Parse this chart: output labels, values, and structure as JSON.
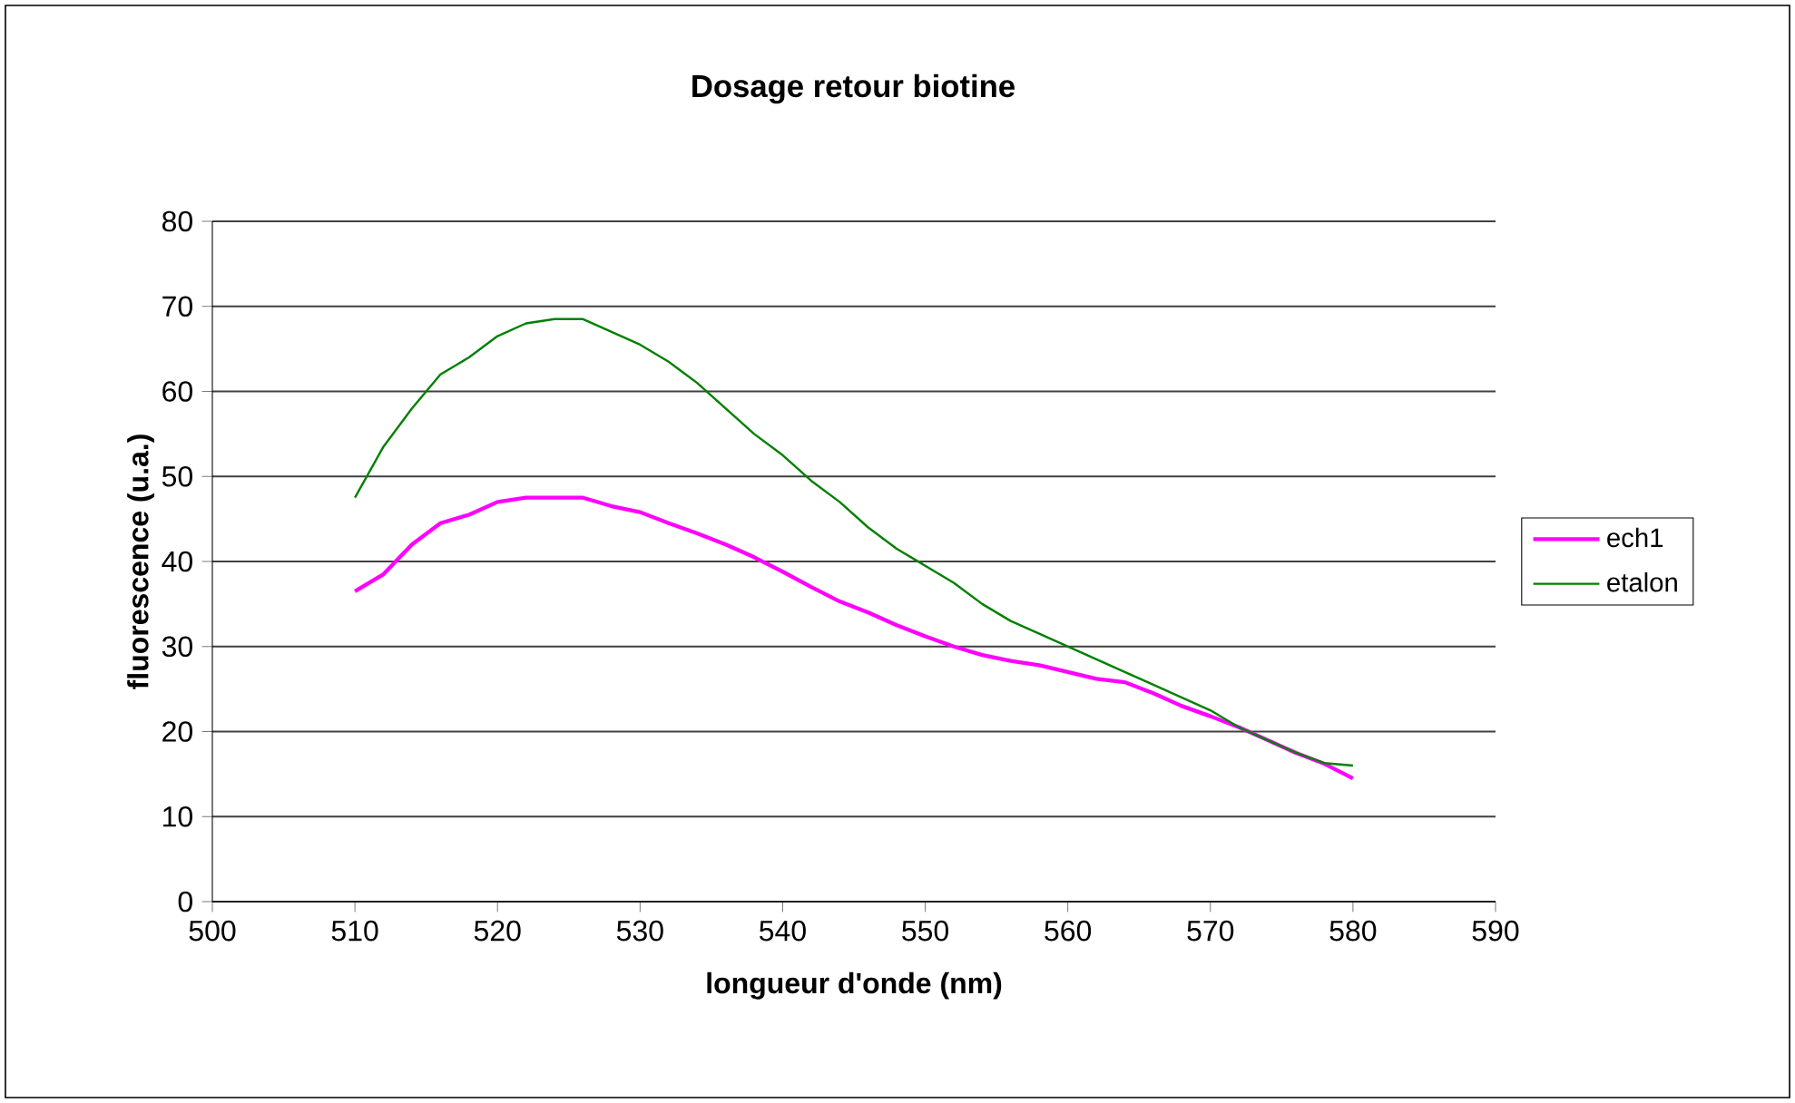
{
  "chart_data": {
    "type": "line",
    "title": "Dosage retour biotine",
    "xlabel": "longueur d'onde (nm)",
    "ylabel": "fluorescence (u.a.)",
    "x": [
      510,
      512,
      514,
      516,
      518,
      520,
      522,
      524,
      526,
      528,
      530,
      532,
      534,
      536,
      538,
      540,
      542,
      544,
      546,
      548,
      550,
      552,
      554,
      556,
      558,
      560,
      562,
      564,
      566,
      568,
      570,
      572,
      574,
      576,
      578,
      580
    ],
    "series": [
      {
        "name": "ech1",
        "color": "#ff00ff",
        "values": [
          36.5,
          38.5,
          42,
          44.5,
          45.5,
          47,
          47.5,
          47.5,
          47.5,
          46.5,
          45.8,
          44.5,
          43.3,
          42,
          40.5,
          38.8,
          37,
          35.3,
          34,
          32.5,
          31.2,
          30,
          29,
          28.3,
          27.8,
          27,
          26.2,
          25.8,
          24.5,
          23,
          21.8,
          20.5,
          19,
          17.5,
          16.2,
          14.5
        ]
      },
      {
        "name": "etalon",
        "color": "#008000",
        "values": [
          47.5,
          53.5,
          58,
          62,
          64,
          66.5,
          68,
          68.5,
          68.5,
          67,
          65.5,
          63.5,
          61,
          58,
          55,
          52.5,
          49.5,
          47,
          44,
          41.5,
          39.5,
          37.5,
          35,
          33,
          31.5,
          30,
          28.5,
          27,
          25.5,
          24,
          22.5,
          20.5,
          19,
          17.5,
          16.3,
          16
        ]
      }
    ],
    "xlim": [
      500,
      590
    ],
    "xticks": [
      500,
      510,
      520,
      530,
      540,
      550,
      560,
      570,
      580,
      590
    ],
    "ylim": [
      0,
      80
    ],
    "yticks": [
      0,
      10,
      20,
      30,
      40,
      50,
      60,
      70,
      80
    ],
    "grid": "y",
    "legend": "right",
    "marker": "none",
    "line_style": "solid"
  }
}
